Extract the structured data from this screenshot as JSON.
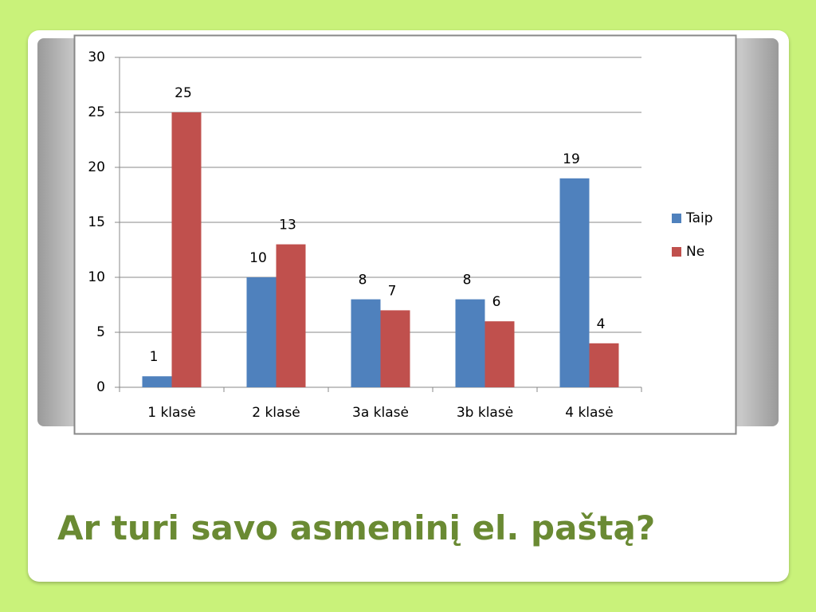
{
  "chart_data": {
    "type": "bar",
    "title": "Ar turi savo asmeninį el. paštą?",
    "categories": [
      "1 klasė",
      "2 klasė",
      "3a klasė",
      "3b klasė",
      "4 klasė"
    ],
    "series": [
      {
        "name": "Taip",
        "color": "#4f81bd",
        "values": [
          1,
          10,
          8,
          8,
          19
        ]
      },
      {
        "name": "Ne",
        "color": "#c0504d",
        "values": [
          25,
          13,
          7,
          6,
          4
        ]
      }
    ],
    "ylim": [
      0,
      30
    ],
    "yticks": [
      0,
      5,
      10,
      15,
      20,
      25,
      30
    ],
    "grid": true,
    "legend": "right"
  }
}
